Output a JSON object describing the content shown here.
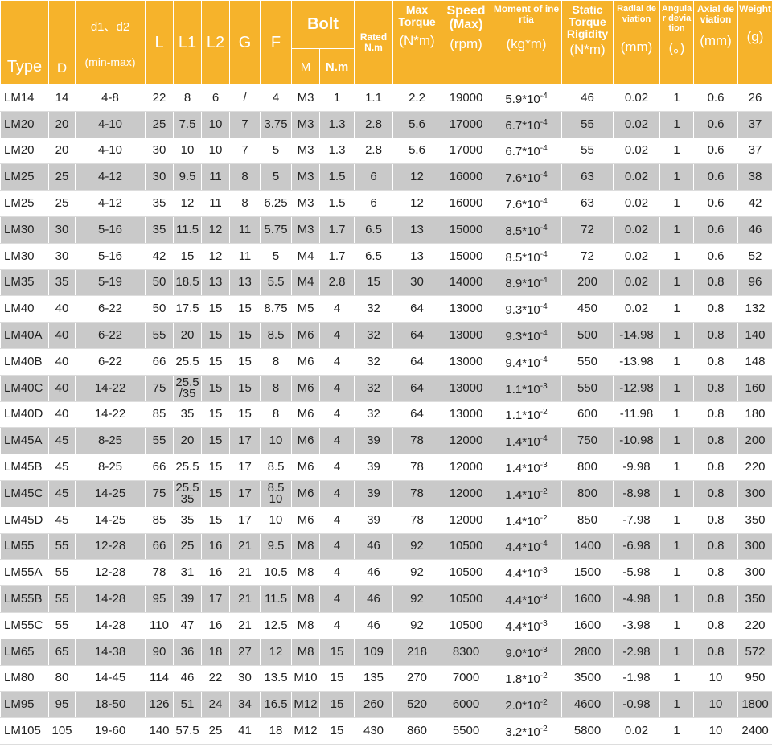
{
  "header": {
    "type": "Type",
    "d": "D",
    "d1d2": "d1、d2",
    "d1d2_unit": "(min-max)",
    "l": "L",
    "l1": "L1",
    "l2": "L2",
    "g": "G",
    "f": "F",
    "bolt": "Bolt",
    "bolt_m": "M",
    "bolt_nm": "N.m",
    "rated": "Rated N.m",
    "max_torque": "Max Torque",
    "max_torque_unit": "(N*m)",
    "speed": "Speed (Max)",
    "speed_unit": "(rpm)",
    "inertia": "Moment of inertia",
    "inertia_unit": "(kg*m)",
    "rigidity": "Static Torque Rigidity",
    "rigidity_unit": "(N*m)",
    "radial": "Radial deviation",
    "radial_unit": "(mm)",
    "angular": "Angular deviation",
    "angular_unit": "(。)",
    "axial": "Axial deviation",
    "axial_unit": "(mm)",
    "weight": "Weight",
    "weight_unit": "(g)"
  },
  "table": {
    "rows": [
      [
        "LM14",
        "14",
        "4-8",
        "22",
        "8",
        "6",
        "/",
        "4",
        "M3",
        "1",
        "1.1",
        "2.2",
        "19000",
        "5.9*10",
        "-4",
        "46",
        "0.02",
        "1",
        "0.6",
        "26"
      ],
      [
        "LM20",
        "20",
        "4-10",
        "25",
        "7.5",
        "10",
        "7",
        "3.75",
        "M3",
        "1.3",
        "2.8",
        "5.6",
        "17000",
        "6.7*10",
        "-4",
        "55",
        "0.02",
        "1",
        "0.6",
        "37"
      ],
      [
        "LM20",
        "20",
        "4-10",
        "30",
        "10",
        "10",
        "7",
        "5",
        "M3",
        "1.3",
        "2.8",
        "5.6",
        "17000",
        "6.7*10",
        "-4",
        "55",
        "0.02",
        "1",
        "0.6",
        "37"
      ],
      [
        "LM25",
        "25",
        "4-12",
        "30",
        "9.5",
        "11",
        "8",
        "5",
        "M3",
        "1.5",
        "6",
        "12",
        "16000",
        "7.6*10",
        "-4",
        "63",
        "0.02",
        "1",
        "0.6",
        "38"
      ],
      [
        "LM25",
        "25",
        "4-12",
        "35",
        "12",
        "11",
        "8",
        "6.25",
        "M3",
        "1.5",
        "6",
        "12",
        "16000",
        "7.6*10",
        "-4",
        "63",
        "0.02",
        "1",
        "0.6",
        "42"
      ],
      [
        "LM30",
        "30",
        "5-16",
        "35",
        "11.5",
        "12",
        "11",
        "5.75",
        "M3",
        "1.7",
        "6.5",
        "13",
        "15000",
        "8.5*10",
        "-4",
        "72",
        "0.02",
        "1",
        "0.6",
        "46"
      ],
      [
        "LM30",
        "30",
        "5-16",
        "42",
        "15",
        "12",
        "11",
        "5",
        "M4",
        "1.7",
        "6.5",
        "13",
        "15000",
        "8.5*10",
        "-4",
        "72",
        "0.02",
        "1",
        "0.6",
        "52"
      ],
      [
        "LM35",
        "35",
        "5-19",
        "50",
        "18.5",
        "13",
        "13",
        "5.5",
        "M4",
        "2.8",
        "15",
        "30",
        "14000",
        "8.9*10",
        "-4",
        "200",
        "0.02",
        "1",
        "0.8",
        "96"
      ],
      [
        "LM40",
        "40",
        "6-22",
        "50",
        "17.5",
        "15",
        "15",
        "8.75",
        "M5",
        "4",
        "32",
        "64",
        "13000",
        "9.3*10",
        "-4",
        "450",
        "0.02",
        "1",
        "0.8",
        "132"
      ],
      [
        "LM40A",
        "40",
        "6-22",
        "55",
        "20",
        "15",
        "15",
        "8.5",
        "M6",
        "4",
        "32",
        "64",
        "13000",
        "9.3*10",
        "-4",
        "500",
        "-14.98",
        "1",
        "0.8",
        "140"
      ],
      [
        "LM40B",
        "40",
        "6-22",
        "66",
        "25.5",
        "15",
        "15",
        "8",
        "M6",
        "4",
        "32",
        "64",
        "13000",
        "9.4*10",
        "-4",
        "550",
        "-13.98",
        "1",
        "0.8",
        "148"
      ],
      [
        "LM40C",
        "40",
        "14-22",
        "75",
        "25.5\n/35",
        "15",
        "15",
        "8",
        "M6",
        "4",
        "32",
        "64",
        "13000",
        "1.1*10",
        "-3",
        "550",
        "-12.98",
        "1",
        "0.8",
        "160"
      ],
      [
        "LM40D",
        "40",
        "14-22",
        "85",
        "35",
        "15",
        "15",
        "8",
        "M6",
        "4",
        "32",
        "64",
        "13000",
        "1.1*10",
        "-2",
        "600",
        "-11.98",
        "1",
        "0.8",
        "180"
      ],
      [
        "LM45A",
        "45",
        "8-25",
        "55",
        "20",
        "15",
        "17",
        "10",
        "M6",
        "4",
        "39",
        "78",
        "12000",
        "1.4*10",
        "-4",
        "750",
        "-10.98",
        "1",
        "0.8",
        "200"
      ],
      [
        "LM45B",
        "45",
        "8-25",
        "66",
        "25.5",
        "15",
        "17",
        "8.5",
        "M6",
        "4",
        "39",
        "78",
        "12000",
        "1.4*10",
        "-3",
        "800",
        "-9.98",
        "1",
        "0.8",
        "220"
      ],
      [
        "LM45C",
        "45",
        "14-25",
        "75",
        "25.5\n35",
        "15",
        "17",
        "8.5\n10",
        "M6",
        "4",
        "39",
        "78",
        "12000",
        "1.4*10",
        "-2",
        "800",
        "-8.98",
        "1",
        "0.8",
        "300"
      ],
      [
        "LM45D",
        "45",
        "14-25",
        "85",
        "35",
        "15",
        "17",
        "10",
        "M6",
        "4",
        "39",
        "78",
        "12000",
        "1.4*10",
        "-2",
        "850",
        "-7.98",
        "1",
        "0.8",
        "350"
      ],
      [
        "LM55",
        "55",
        "12-28",
        "66",
        "25",
        "16",
        "21",
        "9.5",
        "M8",
        "4",
        "46",
        "92",
        "10500",
        "4.4*10",
        "-4",
        "1400",
        "-6.98",
        "1",
        "0.8",
        "300"
      ],
      [
        "LM55A",
        "55",
        "12-28",
        "78",
        "31",
        "16",
        "21",
        "10.5",
        "M8",
        "4",
        "46",
        "92",
        "10500",
        "4.4*10",
        "-3",
        "1500",
        "-5.98",
        "1",
        "0.8",
        "300"
      ],
      [
        "LM55B",
        "55",
        "14-28",
        "95",
        "39",
        "17",
        "21",
        "11.5",
        "M8",
        "4",
        "46",
        "92",
        "10500",
        "4.4*10",
        "-3",
        "1600",
        "-4.98",
        "1",
        "0.8",
        "350"
      ],
      [
        "LM55C",
        "55",
        "14-28",
        "110",
        "47",
        "16",
        "21",
        "12.5",
        "M8",
        "4",
        "46",
        "92",
        "10500",
        "4.4*10",
        "-3",
        "1600",
        "-3.98",
        "1",
        "0.8",
        "220"
      ],
      [
        "LM65",
        "65",
        "14-38",
        "90",
        "36",
        "18",
        "27",
        "12",
        "M8",
        "15",
        "109",
        "218",
        "8300",
        "9.0*10",
        "-3",
        "2800",
        "-2.98",
        "1",
        "0.8",
        "572"
      ],
      [
        "LM80",
        "80",
        "14-45",
        "114",
        "46",
        "22",
        "30",
        "13.5",
        "M10",
        "15",
        "135",
        "270",
        "7000",
        "1.8*10",
        "-2",
        "3500",
        "-1.98",
        "1",
        "10",
        "950"
      ],
      [
        "LM95",
        "95",
        "18-50",
        "126",
        "51",
        "24",
        "34",
        "16.5",
        "M12",
        "15",
        "260",
        "520",
        "6000",
        "2.0*10",
        "-2",
        "4600",
        "-0.98",
        "1",
        "10",
        "1800"
      ],
      [
        "LM105",
        "105",
        "19-60",
        "140",
        "57.5",
        "25",
        "41",
        "18",
        "M12",
        "15",
        "430",
        "860",
        "5500",
        "3.2*10",
        "-2",
        "5800",
        "0.02",
        "1",
        "10",
        "2400"
      ]
    ]
  }
}
